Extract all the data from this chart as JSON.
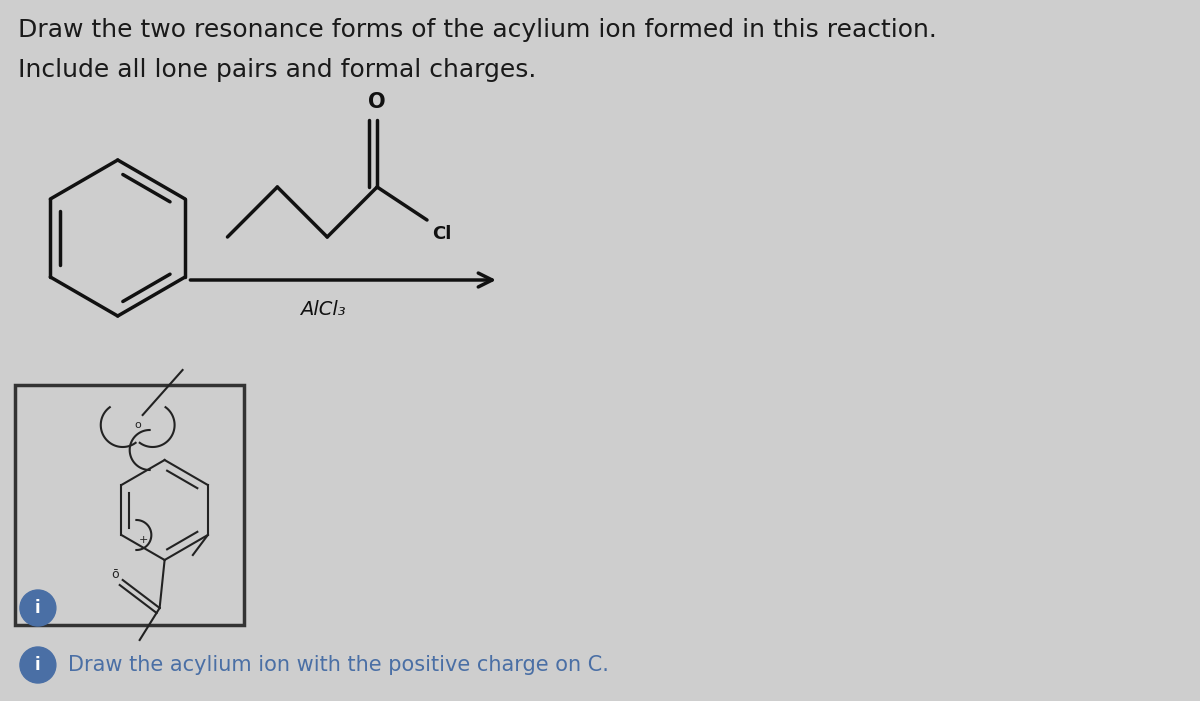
{
  "bg_color": "#cecece",
  "title_line1": "Draw the two resonance forms of the acylium ion formed in this reaction.",
  "title_line2": "Include all lone pairs and formal charges.",
  "title_fontsize": 18,
  "title_color": "#1a1a1a",
  "arrow_label": "AlCl₃",
  "hint_text": "Draw the acylium ion with the positive charge on C.",
  "hint_fontsize": 15,
  "hint_color": "#4a6fa5",
  "bond_color": "#111111",
  "bond_lw": 2.5
}
